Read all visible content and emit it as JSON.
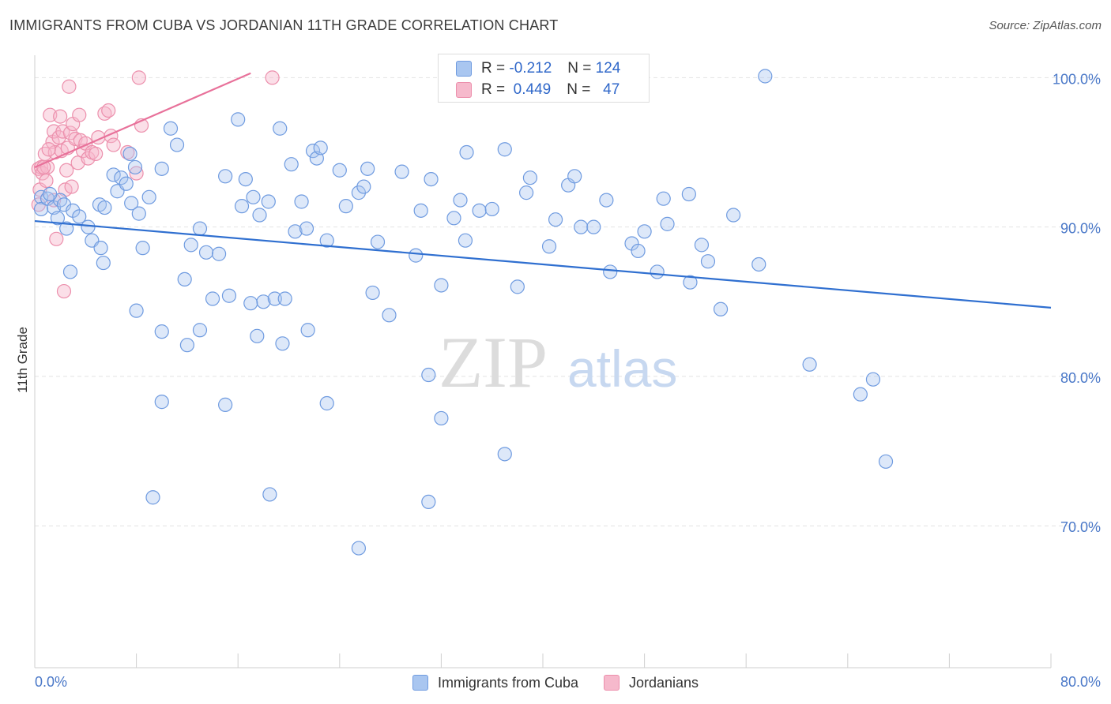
{
  "header": {
    "title": "IMMIGRANTS FROM CUBA VS JORDANIAN 11TH GRADE CORRELATION CHART",
    "source": "Source: ZipAtlas.com"
  },
  "watermark": {
    "zip": "ZIP",
    "atlas": "atlas"
  },
  "legend": {
    "rows": [
      {
        "r_label": "R =",
        "r_value": "-0.212",
        "n_label": "N =",
        "n_value": "124"
      },
      {
        "r_label": "R =",
        "r_value": "0.449",
        "n_label": "N =",
        "n_value": "47"
      }
    ]
  },
  "bottom_legend": {
    "items": [
      {
        "label": "Immigrants from Cuba"
      },
      {
        "label": "Jordanians"
      }
    ]
  },
  "colors": {
    "blue_fill": "#a9c6f0",
    "blue_stroke": "#6f9be0",
    "blue_line": "#2f6fd0",
    "pink_fill": "#f6b9cc",
    "pink_stroke": "#ec8fac",
    "pink_line": "#e8719a",
    "tick_text": "#4a78c8",
    "grid": "#e2e2e2"
  },
  "chart_data": {
    "type": "scatter",
    "title": "IMMIGRANTS FROM CUBA VS JORDANIAN 11TH GRADE CORRELATION CHART",
    "xlabel": "",
    "ylabel": "11th Grade",
    "xlim": [
      0,
      80
    ],
    "ylim": [
      60.5,
      101.5
    ],
    "x_tick_labels": [
      "0.0%",
      "80.0%"
    ],
    "y_ticks": [
      70,
      80,
      90,
      100
    ],
    "y_tick_labels": [
      "70.0%",
      "80.0%",
      "90.0%",
      "100.0%"
    ],
    "grid": true,
    "legend_position": "top-center",
    "series": [
      {
        "name": "Immigrants from Cuba",
        "r": -0.212,
        "n": 124,
        "trend": {
          "x": [
            0,
            80
          ],
          "y": [
            90.4,
            84.6
          ]
        },
        "points": [
          [
            0.5,
            92.0
          ],
          [
            0.5,
            91.2
          ],
          [
            1,
            91.9
          ],
          [
            1.5,
            91.3
          ],
          [
            1.8,
            90.6
          ],
          [
            2,
            91.8
          ],
          [
            2.3,
            91.5
          ],
          [
            2.5,
            89.9
          ],
          [
            2.8,
            87.0
          ],
          [
            3,
            91.1
          ],
          [
            4.2,
            90.0
          ],
          [
            4.5,
            89.1
          ],
          [
            5.1,
            91.5
          ],
          [
            5.5,
            91.3
          ],
          [
            5.2,
            88.6
          ],
          [
            5.4,
            87.6
          ],
          [
            6.2,
            93.5
          ],
          [
            6.5,
            92.4
          ],
          [
            6.8,
            93.3
          ],
          [
            7.2,
            92.9
          ],
          [
            7.5,
            94.9
          ],
          [
            7.9,
            94.0
          ],
          [
            8.2,
            90.9
          ],
          [
            8.5,
            88.6
          ],
          [
            9.0,
            92.0
          ],
          [
            10.0,
            93.9
          ],
          [
            10.7,
            96.6
          ],
          [
            11.2,
            95.5
          ],
          [
            11.8,
            86.5
          ],
          [
            12.3,
            88.8
          ],
          [
            13.0,
            89.9
          ],
          [
            13.5,
            88.3
          ],
          [
            14.0,
            85.2
          ],
          [
            14.5,
            88.2
          ],
          [
            15.0,
            93.4
          ],
          [
            15.3,
            85.4
          ],
          [
            16.0,
            97.2
          ],
          [
            16.3,
            91.4
          ],
          [
            16.6,
            93.2
          ],
          [
            17.2,
            92.0
          ],
          [
            17.7,
            90.8
          ],
          [
            18.0,
            85.0
          ],
          [
            18.4,
            91.7
          ],
          [
            18.9,
            85.2
          ],
          [
            19.3,
            96.6
          ],
          [
            19.7,
            85.2
          ],
          [
            20.2,
            94.2
          ],
          [
            20.5,
            89.7
          ],
          [
            21.0,
            91.7
          ],
          [
            21.4,
            89.9
          ],
          [
            21.9,
            95.1
          ],
          [
            22.2,
            94.6
          ],
          [
            22.5,
            95.3
          ],
          [
            23.0,
            89.1
          ],
          [
            24.0,
            93.8
          ],
          [
            24.5,
            91.4
          ],
          [
            25.5,
            92.3
          ],
          [
            25.9,
            92.7
          ],
          [
            26.2,
            93.9
          ],
          [
            26.6,
            85.6
          ],
          [
            27.0,
            89.0
          ],
          [
            27.9,
            84.1
          ],
          [
            28.9,
            93.7
          ],
          [
            30.0,
            88.1
          ],
          [
            30.4,
            91.1
          ],
          [
            31.2,
            93.2
          ],
          [
            32.0,
            86.1
          ],
          [
            33.0,
            90.6
          ],
          [
            33.5,
            91.8
          ],
          [
            33.9,
            89.1
          ],
          [
            34.0,
            95.0
          ],
          [
            35.0,
            91.1
          ],
          [
            36.0,
            91.2
          ],
          [
            37.0,
            95.2
          ],
          [
            38.0,
            86.0
          ],
          [
            38.7,
            92.3
          ],
          [
            39.0,
            93.3
          ],
          [
            40.5,
            88.7
          ],
          [
            41.0,
            90.5
          ],
          [
            42.0,
            92.8
          ],
          [
            42.5,
            93.4
          ],
          [
            43.0,
            90.0
          ],
          [
            44.0,
            90.0
          ],
          [
            45.0,
            91.8
          ],
          [
            45.3,
            87.0
          ],
          [
            47.0,
            88.9
          ],
          [
            47.5,
            88.4
          ],
          [
            48.0,
            89.7
          ],
          [
            49.0,
            87.0
          ],
          [
            49.5,
            91.9
          ],
          [
            49.8,
            90.2
          ],
          [
            51.5,
            92.2
          ],
          [
            51.6,
            86.3
          ],
          [
            52.5,
            88.8
          ],
          [
            53.0,
            87.7
          ],
          [
            54.0,
            84.5
          ],
          [
            55.0,
            90.8
          ],
          [
            57.0,
            87.5
          ],
          [
            13.0,
            83.1
          ],
          [
            10.0,
            83.0
          ],
          [
            12.0,
            82.1
          ],
          [
            8.0,
            84.4
          ],
          [
            17.5,
            82.7
          ],
          [
            19.5,
            82.2
          ],
          [
            21.5,
            83.1
          ],
          [
            10.0,
            78.3
          ],
          [
            15.0,
            78.1
          ],
          [
            23.0,
            78.2
          ],
          [
            31.0,
            80.1
          ],
          [
            32.0,
            77.2
          ],
          [
            37.0,
            74.8
          ],
          [
            9.3,
            71.9
          ],
          [
            18.5,
            72.1
          ],
          [
            31.0,
            71.6
          ],
          [
            25.5,
            68.5
          ],
          [
            61.0,
            80.8
          ],
          [
            65.0,
            78.8
          ],
          [
            66.0,
            79.8
          ],
          [
            67.0,
            74.3
          ],
          [
            57.5,
            100.1
          ],
          [
            17.0,
            84.9
          ],
          [
            1.2,
            92.2
          ],
          [
            3.5,
            90.7
          ],
          [
            7.6,
            91.6
          ]
        ]
      },
      {
        "name": "Jordanians",
        "r": 0.449,
        "n": 47,
        "trend": {
          "x": [
            0,
            17
          ],
          "y": [
            94.0,
            100.3
          ]
        },
        "points": [
          [
            0.3,
            93.9
          ],
          [
            0.3,
            91.5
          ],
          [
            0.4,
            92.5
          ],
          [
            0.5,
            94.0
          ],
          [
            0.6,
            93.6
          ],
          [
            0.8,
            94.9
          ],
          [
            0.9,
            93.1
          ],
          [
            1.0,
            94.0
          ],
          [
            1.2,
            97.5
          ],
          [
            1.4,
            95.7
          ],
          [
            1.5,
            96.4
          ],
          [
            1.6,
            95.0
          ],
          [
            1.7,
            89.2
          ],
          [
            1.9,
            96.0
          ],
          [
            2.0,
            97.4
          ],
          [
            2.1,
            95.1
          ],
          [
            2.2,
            96.4
          ],
          [
            2.3,
            85.7
          ],
          [
            2.4,
            92.5
          ],
          [
            2.5,
            93.8
          ],
          [
            2.6,
            95.3
          ],
          [
            2.7,
            99.4
          ],
          [
            2.8,
            96.3
          ],
          [
            3.0,
            96.9
          ],
          [
            3.2,
            95.9
          ],
          [
            3.4,
            94.3
          ],
          [
            3.5,
            97.5
          ],
          [
            3.6,
            95.8
          ],
          [
            3.8,
            95.1
          ],
          [
            4.0,
            95.6
          ],
          [
            4.2,
            94.6
          ],
          [
            4.5,
            95.0
          ],
          [
            5.0,
            96.0
          ],
          [
            5.5,
            97.6
          ],
          [
            5.8,
            97.8
          ],
          [
            6.0,
            96.1
          ],
          [
            6.2,
            95.5
          ],
          [
            7.3,
            95.0
          ],
          [
            8.0,
            93.6
          ],
          [
            8.4,
            96.8
          ],
          [
            8.2,
            100.0
          ],
          [
            18.7,
            100.0
          ],
          [
            1.5,
            91.8
          ],
          [
            2.9,
            92.7
          ],
          [
            0.7,
            94.0
          ],
          [
            1.1,
            95.2
          ],
          [
            4.8,
            94.9
          ]
        ]
      }
    ]
  }
}
